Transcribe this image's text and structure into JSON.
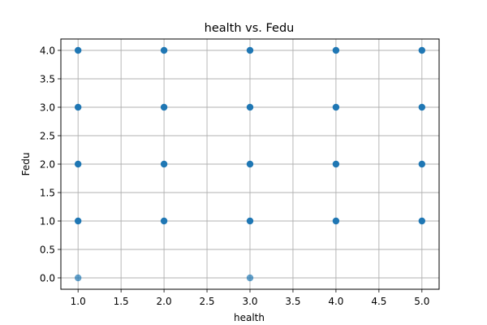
{
  "chart_data": {
    "type": "scatter",
    "title": "health vs. Fedu",
    "xlabel": "health",
    "ylabel": "Fedu",
    "xlim": [
      0.8,
      5.2
    ],
    "ylim": [
      -0.2,
      4.2
    ],
    "xticks": [
      "1.0",
      "1.5",
      "2.0",
      "2.5",
      "3.0",
      "3.5",
      "4.0",
      "4.5",
      "5.0"
    ],
    "yticks": [
      "0.0",
      "0.5",
      "1.0",
      "1.5",
      "2.0",
      "2.5",
      "3.0",
      "3.5",
      "4.0"
    ],
    "grid": true,
    "legend": "none",
    "point_color": "#1f77b4",
    "point_alpha": 0.7,
    "points": [
      {
        "x": 1,
        "y": 4
      },
      {
        "x": 2,
        "y": 4
      },
      {
        "x": 3,
        "y": 4
      },
      {
        "x": 4,
        "y": 4
      },
      {
        "x": 5,
        "y": 4
      },
      {
        "x": 1,
        "y": 3
      },
      {
        "x": 2,
        "y": 3
      },
      {
        "x": 3,
        "y": 3
      },
      {
        "x": 4,
        "y": 3
      },
      {
        "x": 5,
        "y": 3
      },
      {
        "x": 1,
        "y": 2
      },
      {
        "x": 2,
        "y": 2
      },
      {
        "x": 3,
        "y": 2
      },
      {
        "x": 4,
        "y": 2
      },
      {
        "x": 5,
        "y": 2
      },
      {
        "x": 1,
        "y": 1
      },
      {
        "x": 2,
        "y": 1
      },
      {
        "x": 3,
        "y": 1
      },
      {
        "x": 4,
        "y": 1
      },
      {
        "x": 5,
        "y": 1
      },
      {
        "x": 1,
        "y": 0
      },
      {
        "x": 3,
        "y": 0
      }
    ],
    "heavy_points_note_free": true
  }
}
